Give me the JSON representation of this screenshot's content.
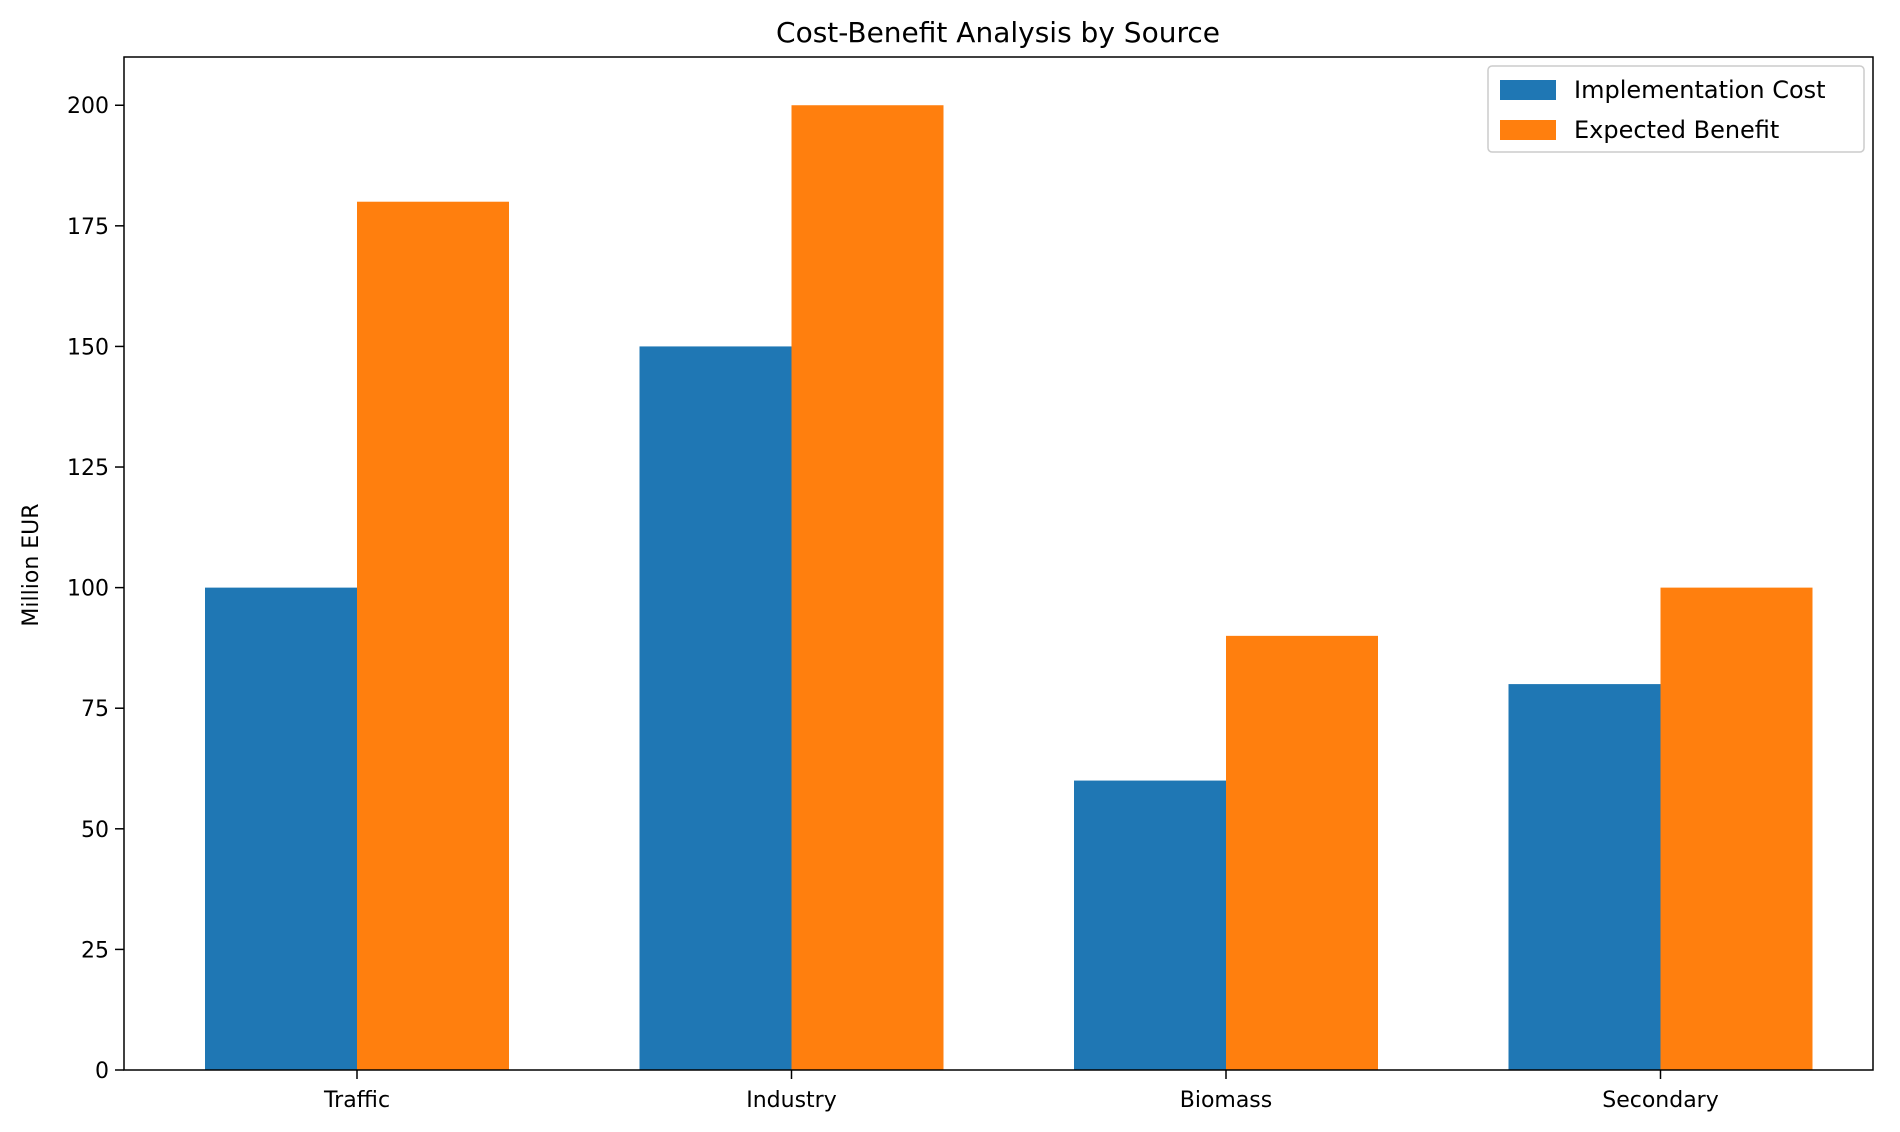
{
  "chart_data": {
    "type": "bar",
    "title": "Cost-Benefit Analysis by Source",
    "xlabel": "",
    "ylabel": "Million EUR",
    "categories": [
      "Traffic",
      "Industry",
      "Biomass",
      "Secondary"
    ],
    "series": [
      {
        "name": "Implementation Cost",
        "values": [
          100,
          150,
          60,
          80
        ],
        "color": "#1f77b4"
      },
      {
        "name": "Expected Benefit",
        "values": [
          180,
          200,
          90,
          100
        ],
        "color": "#ff7f0e"
      }
    ],
    "ylim": [
      0,
      210
    ],
    "yticks": [
      "0",
      "25",
      "50",
      "75",
      "100",
      "125",
      "150",
      "175",
      "200"
    ],
    "grid": false,
    "legend_position": "top-right"
  }
}
